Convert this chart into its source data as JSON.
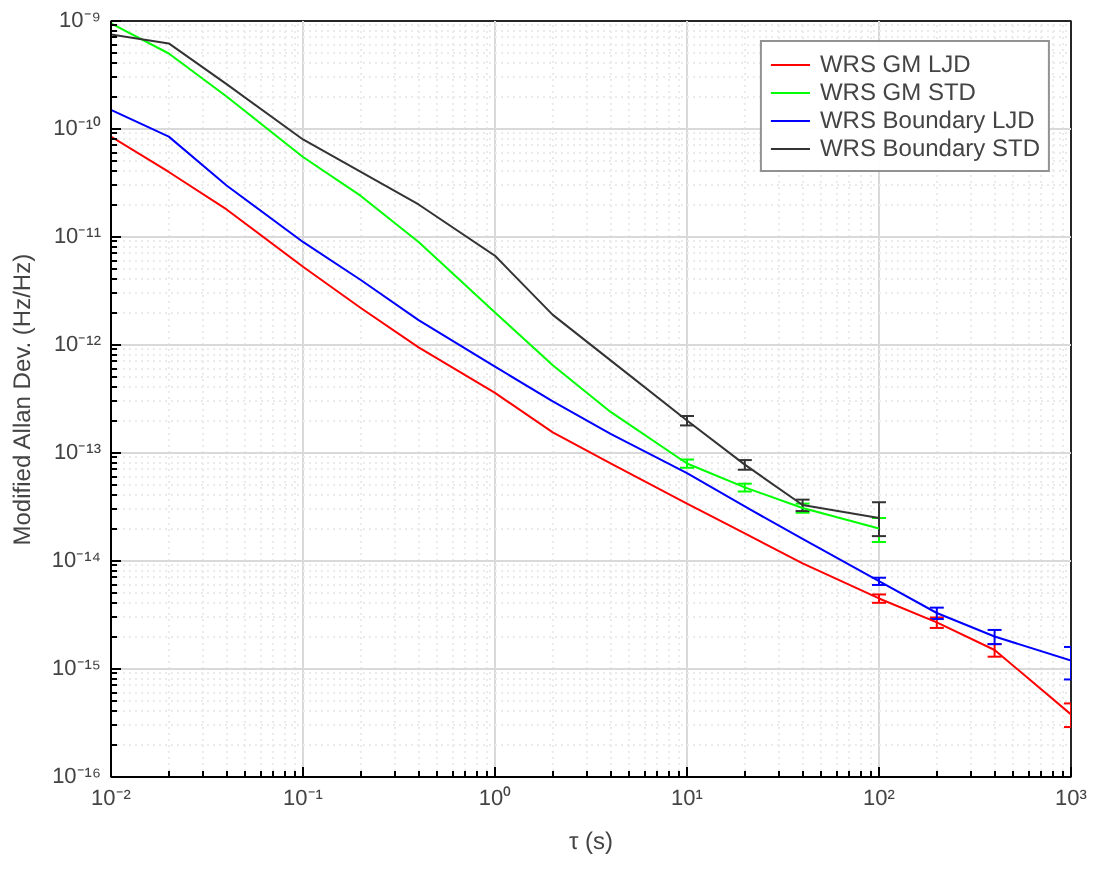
{
  "chart_data": {
    "type": "line",
    "xlabel": "τ (s)",
    "ylabel": "Modified Allan Dev. (Hz/Hz)",
    "log": "xy",
    "grid": true,
    "legend": "top right",
    "marker": "none",
    "line_style": "solid",
    "xlim": [
      0.01,
      1000
    ],
    "ylim": [
      1e-16,
      1e-09
    ],
    "xticks": [
      {
        "value": 0.01,
        "label": "10⁻²"
      },
      {
        "value": 0.1,
        "label": "10⁻¹"
      },
      {
        "value": 1,
        "label": "10⁰"
      },
      {
        "value": 10,
        "label": "10¹"
      },
      {
        "value": 100,
        "label": "10²"
      },
      {
        "value": 1000,
        "label": "10³"
      }
    ],
    "yticks": [
      {
        "value": 1e-16,
        "label": "10⁻¹⁶"
      },
      {
        "value": 1e-15,
        "label": "10⁻¹⁵"
      },
      {
        "value": 1e-14,
        "label": "10⁻¹⁴"
      },
      {
        "value": 1e-13,
        "label": "10⁻¹³"
      },
      {
        "value": 1e-12,
        "label": "10⁻¹²"
      },
      {
        "value": 1e-11,
        "label": "10⁻¹¹"
      },
      {
        "value": 1e-10,
        "label": "10⁻¹⁰"
      },
      {
        "value": 1e-09,
        "label": "10⁻⁹"
      }
    ],
    "x": [
      0.01,
      0.02,
      0.04,
      0.1,
      0.2,
      0.4,
      1,
      2,
      4,
      10,
      20,
      40,
      100,
      200,
      400,
      1000
    ],
    "series": [
      {
        "name": "WRS GM LJD",
        "color": "#ff0000",
        "values": [
          8.5e-11,
          4e-11,
          1.8e-11,
          5.3e-12,
          2.2e-12,
          9.5e-13,
          3.6e-13,
          1.55e-13,
          8e-14,
          3.4e-14,
          1.8e-14,
          9.5e-15,
          4.5e-15,
          2.7e-15,
          1.5e-15,
          3.8e-16
        ],
        "errors": [
          null,
          null,
          null,
          null,
          null,
          null,
          null,
          null,
          null,
          null,
          null,
          null,
          [
            4.1e-15,
            4.9e-15
          ],
          [
            2.4e-15,
            3e-15
          ],
          [
            1.3e-15,
            1.7e-15
          ],
          [
            2.9e-16,
            4.8e-16
          ]
        ]
      },
      {
        "name": "WRS GM STD",
        "color": "#00ff00",
        "values": [
          9.5e-10,
          5e-10,
          2e-10,
          5.5e-11,
          2.4e-11,
          9e-12,
          2e-12,
          6.5e-13,
          2.4e-13,
          8e-14,
          4.8e-14,
          3.1e-14,
          2e-14
        ],
        "x": [
          0.01,
          0.02,
          0.04,
          0.1,
          0.2,
          0.4,
          1,
          2,
          4,
          10,
          20,
          40,
          100
        ],
        "errors": [
          null,
          null,
          null,
          null,
          null,
          null,
          null,
          null,
          null,
          [
            7.3e-14,
            8.7e-14
          ],
          [
            4.4e-14,
            5.2e-14
          ],
          [
            2.8e-14,
            3.4e-14
          ],
          [
            1.5e-14,
            2.5e-14
          ]
        ]
      },
      {
        "name": "WRS Boundary LJD",
        "color": "#0000ff",
        "values": [
          1.5e-10,
          8.5e-11,
          3e-11,
          9e-12,
          4e-12,
          1.7e-12,
          6.3e-13,
          3e-13,
          1.5e-13,
          6.5e-14,
          3.2e-14,
          1.6e-14,
          6.5e-15,
          3.3e-15,
          2e-15,
          1.2e-15
        ],
        "errors": [
          null,
          null,
          null,
          null,
          null,
          null,
          null,
          null,
          null,
          null,
          null,
          null,
          [
            6e-15,
            7e-15
          ],
          [
            2.9e-15,
            3.7e-15
          ],
          [
            1.7e-15,
            2.3e-15
          ],
          [
            8e-16,
            1.6e-15
          ]
        ]
      },
      {
        "name": "WRS Boundary STD",
        "color": "#333333",
        "values": [
          7.5e-10,
          6.2e-10,
          2.6e-10,
          8e-11,
          4e-11,
          2e-11,
          6.7e-12,
          1.9e-12,
          7.2e-13,
          2e-13,
          7.8e-14,
          3.3e-14,
          2.5e-14
        ],
        "x": [
          0.01,
          0.02,
          0.04,
          0.1,
          0.2,
          0.4,
          1,
          2,
          4,
          10,
          20,
          40,
          100
        ],
        "errors": [
          null,
          null,
          null,
          null,
          null,
          null,
          null,
          null,
          null,
          [
            1.8e-13,
            2.2e-13
          ],
          [
            7e-14,
            8.6e-14
          ],
          [
            2.9e-14,
            3.7e-14
          ],
          [
            1.7e-14,
            3.5e-14
          ]
        ]
      }
    ]
  }
}
